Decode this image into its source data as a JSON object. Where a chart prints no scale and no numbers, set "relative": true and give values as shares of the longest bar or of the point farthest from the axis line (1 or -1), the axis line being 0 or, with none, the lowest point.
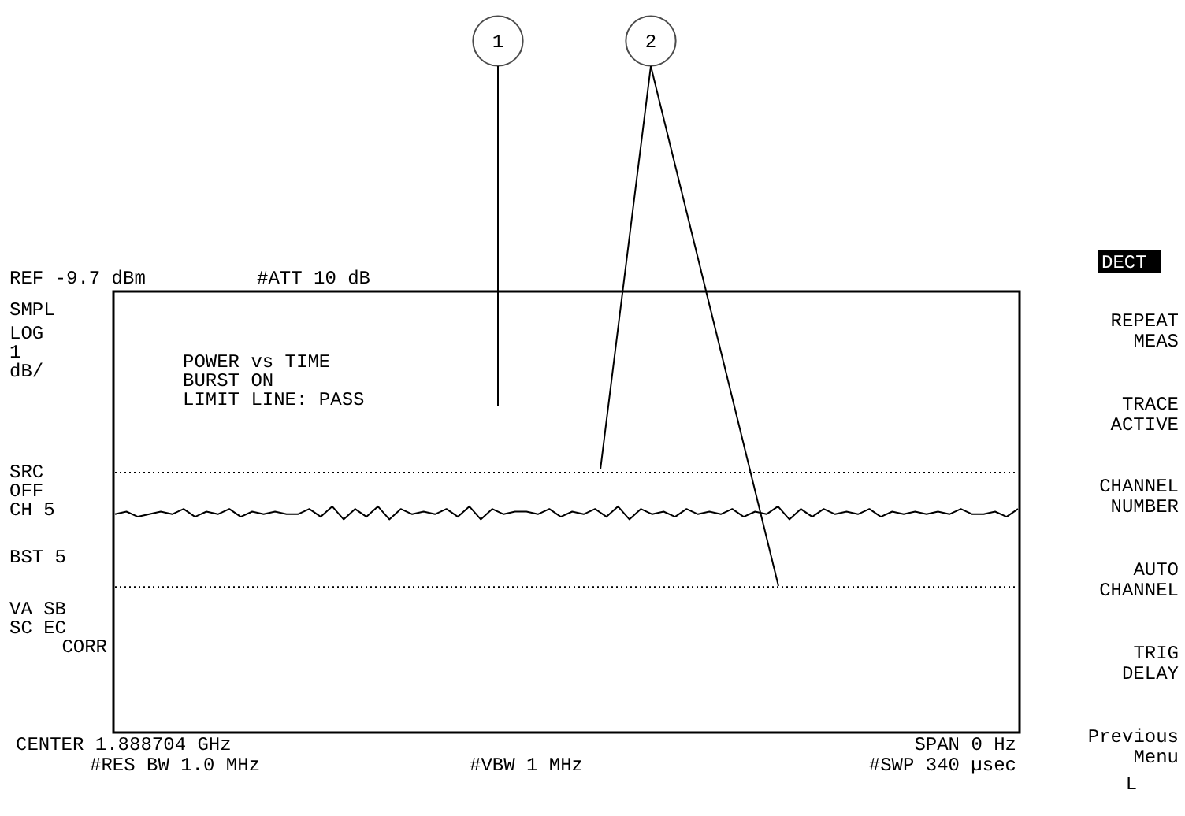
{
  "chart_data": {
    "type": "line",
    "relative": true,
    "categories": [
      null,
      null,
      null,
      null,
      null,
      null,
      null,
      null,
      null,
      null,
      null,
      null,
      null,
      null,
      null,
      null,
      null,
      null,
      null,
      null,
      null,
      null,
      null,
      null,
      null,
      null,
      null,
      null,
      null,
      null,
      null,
      null,
      null,
      null,
      null,
      null,
      null,
      null,
      null,
      null,
      null,
      null,
      null,
      null,
      null,
      null,
      null,
      null,
      null,
      null,
      null,
      null,
      null,
      null,
      null,
      null,
      null,
      null,
      null,
      null,
      null,
      null,
      null,
      null,
      null,
      null,
      null,
      null,
      null,
      null,
      null,
      null,
      null,
      null,
      null,
      null,
      null,
      null,
      null,
      null
    ],
    "series": [
      {
        "color": "#000000",
        "line_style": "solid",
        "values": [
          0.84,
          0.85,
          0.83,
          0.84,
          0.85,
          0.84,
          0.86,
          0.83,
          0.85,
          0.84,
          0.86,
          0.83,
          0.85,
          0.84,
          0.85,
          0.84,
          0.84,
          0.86,
          0.83,
          0.87,
          0.82,
          0.86,
          0.83,
          0.87,
          0.82,
          0.86,
          0.84,
          0.85,
          0.84,
          0.86,
          0.83,
          0.87,
          0.82,
          0.86,
          0.84,
          0.85,
          0.85,
          0.84,
          0.86,
          0.83,
          0.85,
          0.84,
          0.86,
          0.83,
          0.87,
          0.82,
          0.86,
          0.84,
          0.85,
          0.83,
          0.86,
          0.84,
          0.85,
          0.84,
          0.86,
          0.83,
          0.85,
          0.84,
          0.87,
          0.82,
          0.86,
          0.83,
          0.86,
          0.84,
          0.85,
          0.84,
          0.86,
          0.83,
          0.85,
          0.84,
          0.85,
          0.84,
          0.85,
          0.84,
          0.86,
          0.84,
          0.84,
          0.85,
          0.83,
          0.86
        ]
      },
      {
        "color": "#000000",
        "line_style": "dotted",
        "values": [
          1.0,
          1.0,
          1.0,
          1.0,
          1.0,
          1.0,
          1.0,
          1.0,
          1.0,
          1.0,
          1.0,
          1.0,
          1.0,
          1.0,
          1.0,
          1.0,
          1.0,
          1.0,
          1.0,
          1.0,
          1.0,
          1.0,
          1.0,
          1.0,
          1.0,
          1.0,
          1.0,
          1.0,
          1.0,
          1.0,
          1.0,
          1.0,
          1.0,
          1.0,
          1.0,
          1.0,
          1.0,
          1.0,
          1.0,
          1.0,
          1.0,
          1.0,
          1.0,
          1.0,
          1.0,
          1.0,
          1.0,
          1.0,
          1.0,
          1.0,
          1.0,
          1.0,
          1.0,
          1.0,
          1.0,
          1.0,
          1.0,
          1.0,
          1.0,
          1.0,
          1.0,
          1.0,
          1.0,
          1.0,
          1.0,
          1.0,
          1.0,
          1.0,
          1.0,
          1.0,
          1.0,
          1.0,
          1.0,
          1.0,
          1.0,
          1.0,
          1.0,
          1.0,
          1.0,
          1.0
        ]
      },
      {
        "color": "#000000",
        "line_style": "dotted",
        "values": [
          0.56,
          0.56,
          0.56,
          0.56,
          0.56,
          0.56,
          0.56,
          0.56,
          0.56,
          0.56,
          0.56,
          0.56,
          0.56,
          0.56,
          0.56,
          0.56,
          0.56,
          0.56,
          0.56,
          0.56,
          0.56,
          0.56,
          0.56,
          0.56,
          0.56,
          0.56,
          0.56,
          0.56,
          0.56,
          0.56,
          0.56,
          0.56,
          0.56,
          0.56,
          0.56,
          0.56,
          0.56,
          0.56,
          0.56,
          0.56,
          0.56,
          0.56,
          0.56,
          0.56,
          0.56,
          0.56,
          0.56,
          0.56,
          0.56,
          0.56,
          0.56,
          0.56,
          0.56,
          0.56,
          0.56,
          0.56,
          0.56,
          0.56,
          0.56,
          0.56,
          0.56,
          0.56,
          0.56,
          0.56,
          0.56,
          0.56,
          0.56,
          0.56,
          0.56,
          0.56,
          0.56,
          0.56,
          0.56,
          0.56,
          0.56,
          0.56,
          0.56,
          0.56,
          0.56,
          0.56
        ]
      }
    ],
    "annotations": [
      "REF -9.7 dBm",
      "#ATT 10 dB",
      "SMPL",
      "LOG",
      "1",
      "dB/",
      "POWER vs TIME",
      "BURST ON",
      "LIMIT LINE: PASS",
      "SRC",
      "OFF",
      "CH 5",
      "BST 5",
      "VA SB",
      "SC EC",
      "CORR",
      "CENTER 1.888704 GHz",
      "#RES BW 1.0 MHz",
      "#VBW 1 MHz",
      "SPAN 0 Hz",
      "#SWP 340 µsec",
      "DECT",
      "REPEAT\nMEAS",
      "TRACE\nACTIVE",
      "CHANNEL\nNUMBER",
      "AUTO\nCHANNEL",
      "TRIG\nDELAY",
      "Previous\nMenu",
      "L",
      "1",
      "2"
    ]
  }
}
